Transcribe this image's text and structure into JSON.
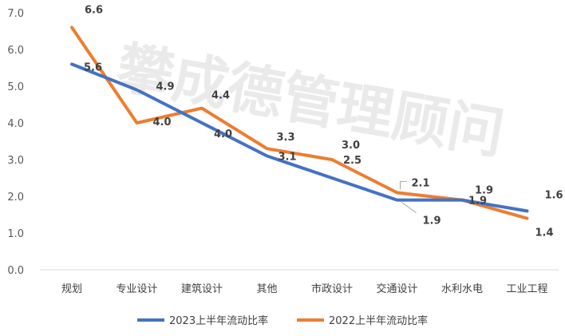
{
  "watermark": "攀成德管理顾问",
  "chart_data": {
    "type": "line",
    "title": "",
    "xlabel": "",
    "ylabel": "",
    "ylim": [
      0,
      7
    ],
    "yticks": [
      "0.0",
      "1.0",
      "2.0",
      "3.0",
      "4.0",
      "5.0",
      "6.0",
      "7.0"
    ],
    "grid": false,
    "legend_position": "bottom",
    "categories": [
      "规划",
      "专业设计",
      "建筑设计",
      "其他",
      "市政设计",
      "交通设计",
      "水利水电",
      "工业工程"
    ],
    "series": [
      {
        "name": "2023上半年流动比率",
        "color": "#4472c4",
        "values": [
          5.6,
          4.9,
          4.0,
          3.1,
          2.5,
          1.9,
          1.9,
          1.6
        ],
        "labels": [
          "5.6",
          "4.9",
          "4.0",
          "3.1",
          "2.5",
          "1.9",
          "1.9",
          "1.6"
        ]
      },
      {
        "name": "2022上半年流动比率",
        "color": "#ed7d31",
        "values": [
          6.6,
          4.0,
          4.4,
          3.3,
          3.0,
          2.1,
          1.9,
          1.4
        ],
        "labels": [
          "6.6",
          "4.0",
          "4.4",
          "3.3",
          "3.0",
          "2.1",
          "1.9",
          "1.4"
        ]
      }
    ]
  }
}
